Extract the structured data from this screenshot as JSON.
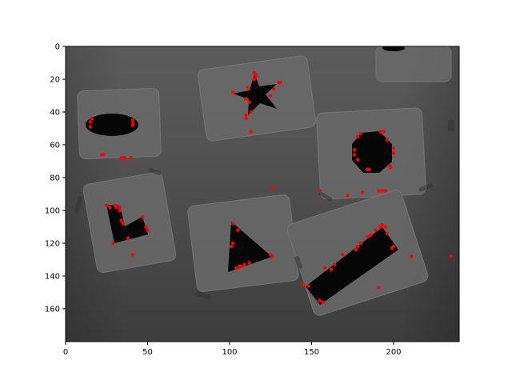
{
  "chart_data": {
    "type": "scatter",
    "title": "",
    "xlabel": "",
    "ylabel": "",
    "xlim": [
      0,
      240
    ],
    "ylim": [
      180,
      0
    ],
    "y_axis_inverted": true,
    "grid": false,
    "legend": "none",
    "x_ticks": [
      "0",
      "50",
      "100",
      "150",
      "200"
    ],
    "y_ticks": [
      "0",
      "20",
      "40",
      "60",
      "80",
      "100",
      "120",
      "140",
      "160"
    ],
    "background": "grayscale photograph of cut-out black shapes (ellipse, star, hexagon, L-shape, triangle, rectangle) on gray cards",
    "marker_color": "#ff0000",
    "points": [
      {
        "x": 15,
        "y": 46
      },
      {
        "x": 15,
        "y": 49
      },
      {
        "x": 16,
        "y": 44
      },
      {
        "x": 22,
        "y": 66
      },
      {
        "x": 23,
        "y": 66
      },
      {
        "x": 34,
        "y": 68
      },
      {
        "x": 35,
        "y": 68
      },
      {
        "x": 36,
        "y": 68
      },
      {
        "x": 40,
        "y": 68
      },
      {
        "x": 41,
        "y": 45
      },
      {
        "x": 41,
        "y": 47
      },
      {
        "x": 41,
        "y": 48
      },
      {
        "x": 102,
        "y": 28
      },
      {
        "x": 110,
        "y": 32
      },
      {
        "x": 110,
        "y": 42
      },
      {
        "x": 110,
        "y": 44
      },
      {
        "x": 111,
        "y": 25
      },
      {
        "x": 112,
        "y": 34
      },
      {
        "x": 113,
        "y": 40
      },
      {
        "x": 113,
        "y": 52
      },
      {
        "x": 115,
        "y": 16
      },
      {
        "x": 116,
        "y": 17
      },
      {
        "x": 116,
        "y": 18
      },
      {
        "x": 115,
        "y": 20
      },
      {
        "x": 125,
        "y": 30
      },
      {
        "x": 127,
        "y": 26
      },
      {
        "x": 130,
        "y": 22
      },
      {
        "x": 131,
        "y": 22
      },
      {
        "x": 176,
        "y": 63
      },
      {
        "x": 176,
        "y": 66
      },
      {
        "x": 178,
        "y": 69
      },
      {
        "x": 178,
        "y": 55
      },
      {
        "x": 180,
        "y": 53
      },
      {
        "x": 184,
        "y": 75
      },
      {
        "x": 185,
        "y": 75
      },
      {
        "x": 192,
        "y": 52
      },
      {
        "x": 194,
        "y": 52
      },
      {
        "x": 198,
        "y": 73
      },
      {
        "x": 198,
        "y": 74
      },
      {
        "x": 200,
        "y": 62
      },
      {
        "x": 200,
        "y": 65
      },
      {
        "x": 196,
        "y": 57
      },
      {
        "x": 25,
        "y": 97
      },
      {
        "x": 27,
        "y": 98
      },
      {
        "x": 30,
        "y": 97
      },
      {
        "x": 31,
        "y": 98
      },
      {
        "x": 33,
        "y": 98
      },
      {
        "x": 33,
        "y": 100
      },
      {
        "x": 34,
        "y": 106
      },
      {
        "x": 35,
        "y": 108
      },
      {
        "x": 29,
        "y": 120
      },
      {
        "x": 38,
        "y": 117
      },
      {
        "x": 47,
        "y": 104
      },
      {
        "x": 49,
        "y": 110
      },
      {
        "x": 50,
        "y": 112
      },
      {
        "x": 41,
        "y": 127
      },
      {
        "x": 101,
        "y": 122
      },
      {
        "x": 102,
        "y": 108
      },
      {
        "x": 102,
        "y": 120
      },
      {
        "x": 104,
        "y": 135
      },
      {
        "x": 106,
        "y": 134
      },
      {
        "x": 107,
        "y": 134
      },
      {
        "x": 109,
        "y": 133
      },
      {
        "x": 112,
        "y": 132
      },
      {
        "x": 105,
        "y": 112
      },
      {
        "x": 125,
        "y": 127
      },
      {
        "x": 126,
        "y": 128
      },
      {
        "x": 126,
        "y": 86
      },
      {
        "x": 145,
        "y": 145
      },
      {
        "x": 148,
        "y": 146
      },
      {
        "x": 155,
        "y": 155
      },
      {
        "x": 157,
        "y": 156
      },
      {
        "x": 158,
        "y": 135
      },
      {
        "x": 162,
        "y": 136
      },
      {
        "x": 164,
        "y": 133
      },
      {
        "x": 169,
        "y": 127
      },
      {
        "x": 177,
        "y": 124
      },
      {
        "x": 178,
        "y": 122
      },
      {
        "x": 180,
        "y": 120
      },
      {
        "x": 184,
        "y": 116
      },
      {
        "x": 186,
        "y": 115
      },
      {
        "x": 189,
        "y": 112
      },
      {
        "x": 192,
        "y": 110
      },
      {
        "x": 193,
        "y": 109
      },
      {
        "x": 195,
        "y": 110
      },
      {
        "x": 196,
        "y": 114
      },
      {
        "x": 199,
        "y": 123
      },
      {
        "x": 200,
        "y": 122
      },
      {
        "x": 191,
        "y": 147
      },
      {
        "x": 211,
        "y": 128
      },
      {
        "x": 235,
        "y": 128
      },
      {
        "x": 155,
        "y": 88
      },
      {
        "x": 172,
        "y": 91
      },
      {
        "x": 181,
        "y": 89
      },
      {
        "x": 191,
        "y": 88
      },
      {
        "x": 193,
        "y": 88
      },
      {
        "x": 195,
        "y": 88
      }
    ]
  }
}
